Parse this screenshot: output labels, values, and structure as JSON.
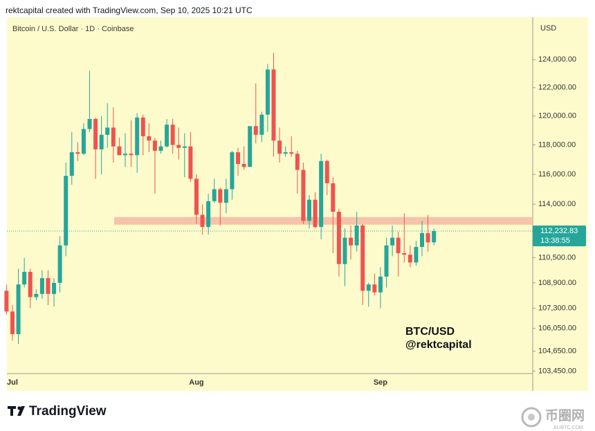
{
  "header": "rektcapital created with TradingView.com, Sep 10, 2025 10:21 UTC",
  "logo": "TradingView",
  "watermark": {
    "name": "币圈网",
    "site": "ALIBTC.COM"
  },
  "chart_data": {
    "type": "candlestick",
    "title": "Bitcoin / U.S. Dollar · 1D · Coinbase",
    "currency": "USD",
    "annotation": [
      "BTC/USD",
      "@rektcapital"
    ],
    "categories": [
      null,
      "Jul",
      null,
      null,
      null,
      null,
      null,
      null,
      null,
      null,
      null,
      null,
      null,
      null,
      null,
      null,
      null,
      null,
      null,
      null,
      null,
      null,
      null,
      null,
      null,
      null,
      null,
      null,
      null,
      null,
      null,
      null,
      "Aug",
      null,
      null,
      null,
      null,
      null,
      null,
      null,
      null,
      null,
      null,
      null,
      null,
      null,
      null,
      null,
      null,
      null,
      null,
      null,
      null,
      null,
      null,
      null,
      null,
      null,
      null,
      null,
      null,
      null,
      null,
      "Sep",
      null,
      null,
      null,
      null,
      null,
      null,
      null,
      null,
      null
    ],
    "open": [
      108400,
      107100,
      105700,
      108800,
      109600,
      108000,
      108200,
      109200,
      108200,
      108900,
      111300,
      115900,
      117500,
      117400,
      119100,
      119800,
      117700,
      118700,
      119200,
      117900,
      117300,
      117400,
      117300,
      119900,
      118600,
      118300,
      117600,
      117900,
      119400,
      118000,
      117800,
      117900,
      115700,
      113300,
      112500,
      114200,
      115000,
      114100,
      115000,
      117500,
      116700,
      116500,
      119300,
      118700,
      120100,
      123300,
      118300,
      117400,
      117500,
      117400,
      116300,
      112900,
      114300,
      112500,
      116900,
      115400,
      113500,
      110100,
      111800,
      111300,
      112600,
      108400,
      108800,
      108300,
      109300,
      111300,
      111800,
      110800,
      110700,
      110200,
      111200,
      112100,
      111500
    ],
    "high": [
      108800,
      107500,
      109800,
      110500,
      109800,
      108500,
      109700,
      109700,
      109200,
      111900,
      116800,
      118900,
      118200,
      119500,
      123200,
      119900,
      120000,
      120900,
      120600,
      118500,
      118800,
      119700,
      120200,
      120100,
      119500,
      118500,
      118300,
      119800,
      119800,
      119200,
      118800,
      118900,
      116000,
      114000,
      114700,
      115700,
      115100,
      115700,
      117600,
      117800,
      117900,
      119300,
      122300,
      120300,
      123700,
      124500,
      119200,
      117900,
      118600,
      117600,
      116800,
      114600,
      114800,
      117400,
      117000,
      115800,
      113700,
      112400,
      112600,
      113500,
      112700,
      108900,
      109500,
      109900,
      111800,
      112600,
      112200,
      113400,
      111300,
      111600,
      112900,
      113300,
      112400
    ],
    "low": [
      106900,
      105300,
      105100,
      108600,
      107300,
      107800,
      107900,
      107500,
      107400,
      108300,
      110600,
      115300,
      116900,
      117300,
      118900,
      115700,
      116000,
      117800,
      116800,
      117300,
      116500,
      116500,
      116100,
      117300,
      117500,
      114700,
      117400,
      117800,
      117400,
      117000,
      115800,
      115500,
      112700,
      112000,
      112000,
      114100,
      112600,
      113400,
      114300,
      115900,
      116300,
      116500,
      118100,
      118200,
      118900,
      117200,
      116800,
      117200,
      117200,
      114700,
      112700,
      112400,
      112400,
      111700,
      114600,
      110800,
      109300,
      108700,
      110400,
      110900,
      107500,
      107400,
      108100,
      107300,
      108600,
      110600,
      109300,
      110200,
      109900,
      110000,
      110600,
      110900,
      111300
    ],
    "close": [
      107100,
      105700,
      108800,
      109600,
      108000,
      108200,
      109200,
      108200,
      108900,
      111300,
      115900,
      117500,
      117400,
      119100,
      119800,
      117700,
      118700,
      119200,
      117900,
      117300,
      117400,
      117300,
      119900,
      118600,
      118300,
      117600,
      117900,
      119400,
      118000,
      117800,
      117900,
      115700,
      113300,
      112500,
      114200,
      115000,
      114100,
      115000,
      117500,
      116700,
      116500,
      119300,
      118700,
      120100,
      123300,
      118300,
      117400,
      117500,
      117400,
      116300,
      112900,
      114300,
      112500,
      116900,
      115400,
      113500,
      110100,
      111800,
      111300,
      112600,
      108400,
      108800,
      108300,
      109300,
      111300,
      111800,
      110800,
      110700,
      110200,
      111200,
      112100,
      111500,
      112232.83
    ],
    "up_color": "#26a69a",
    "down_color": "#ef5350",
    "ylim": [
      103300,
      127100
    ],
    "log_scale": true,
    "grid": false,
    "yticks": [
      {
        "value": 124000,
        "label": "124,000.00"
      },
      {
        "value": 122000,
        "label": "122,000.00"
      },
      {
        "value": 120000,
        "label": "120,000.00"
      },
      {
        "value": 118000,
        "label": "118,000.00"
      },
      {
        "value": 116000,
        "label": "116,000.00"
      },
      {
        "value": 114000,
        "label": "114,000.00"
      },
      {
        "value": 110500,
        "label": "110,500.00"
      },
      {
        "value": 108900,
        "label": "108,900.00"
      },
      {
        "value": 107300,
        "label": "107,300.00"
      },
      {
        "value": 106050,
        "label": "106,050.00"
      },
      {
        "value": 104650,
        "label": "104,650.00"
      },
      {
        "value": 103450,
        "label": "103,450.00"
      }
    ],
    "current_price": {
      "value": 112232.83,
      "label": "112,232.83"
    },
    "countdown": "13:38:55",
    "zone": {
      "low": 112650,
      "high": 113150,
      "color": "#f6b9a4"
    }
  }
}
